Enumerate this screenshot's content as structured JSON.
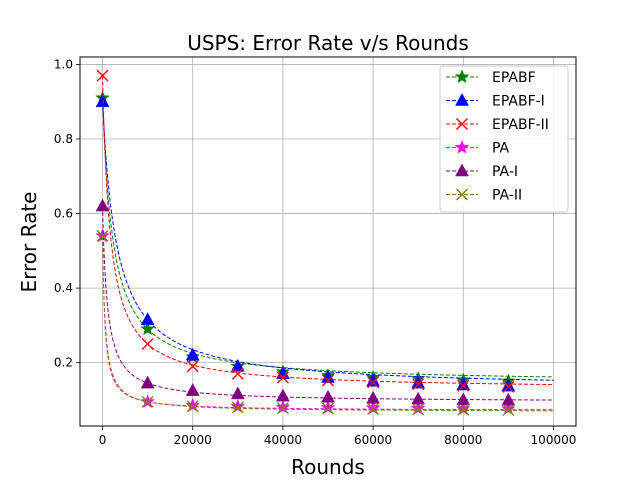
{
  "chart_data": {
    "type": "line",
    "title": "USPS: Error Rate v/s Rounds",
    "xlabel": "Rounds",
    "ylabel": "Error Rate",
    "xlim": [
      -5000,
      105000
    ],
    "ylim": [
      0.03,
      1.02
    ],
    "xticks": [
      0,
      20000,
      40000,
      60000,
      80000,
      100000
    ],
    "yticks": [
      0.2,
      0.4,
      0.6,
      0.8,
      1.0
    ],
    "xtick_labels": [
      "0",
      "20000",
      "40000",
      "60000",
      "80000",
      "100000"
    ],
    "ytick_labels": [
      "0.2",
      "0.4",
      "0.6",
      "0.8",
      "1.0"
    ],
    "grid": true,
    "legend_position": "top-right",
    "marker_x": [
      0,
      10000,
      20000,
      30000,
      40000,
      50000,
      60000,
      70000,
      80000,
      90000
    ],
    "series": [
      {
        "name": "EPABF",
        "color": "#008000",
        "marker": "star",
        "values": [
          0.91,
          0.29,
          0.215,
          0.19,
          0.175,
          0.165,
          0.16,
          0.157,
          0.153,
          0.15
        ],
        "end_value": 0.148
      },
      {
        "name": "EPABF-I",
        "color": "#0000ff",
        "marker": "triangle",
        "values": [
          0.9,
          0.315,
          0.22,
          0.19,
          0.17,
          0.16,
          0.15,
          0.145,
          0.14,
          0.137
        ],
        "end_value": 0.133
      },
      {
        "name": "EPABF-II",
        "color": "#ff0000",
        "marker": "x",
        "values": [
          0.97,
          0.25,
          0.19,
          0.17,
          0.16,
          0.152,
          0.147,
          0.142,
          0.138,
          0.135
        ],
        "end_value": 0.131
      },
      {
        "name": "PA",
        "color": "#ff00ff",
        "marker": "star",
        "values": [
          0.54,
          0.095,
          0.085,
          0.082,
          0.08,
          0.079,
          0.078,
          0.077,
          0.076,
          0.076
        ],
        "end_value": 0.075
      },
      {
        "name": "PA-I",
        "color": "#800080",
        "marker": "triangle",
        "values": [
          0.62,
          0.145,
          0.125,
          0.116,
          0.11,
          0.107,
          0.104,
          0.102,
          0.1,
          0.099
        ],
        "end_value": 0.098
      },
      {
        "name": "PA-II",
        "color": "#808000",
        "marker": "x",
        "values": [
          0.54,
          0.095,
          0.083,
          0.08,
          0.078,
          0.077,
          0.076,
          0.075,
          0.074,
          0.073
        ],
        "end_value": 0.072
      }
    ]
  }
}
